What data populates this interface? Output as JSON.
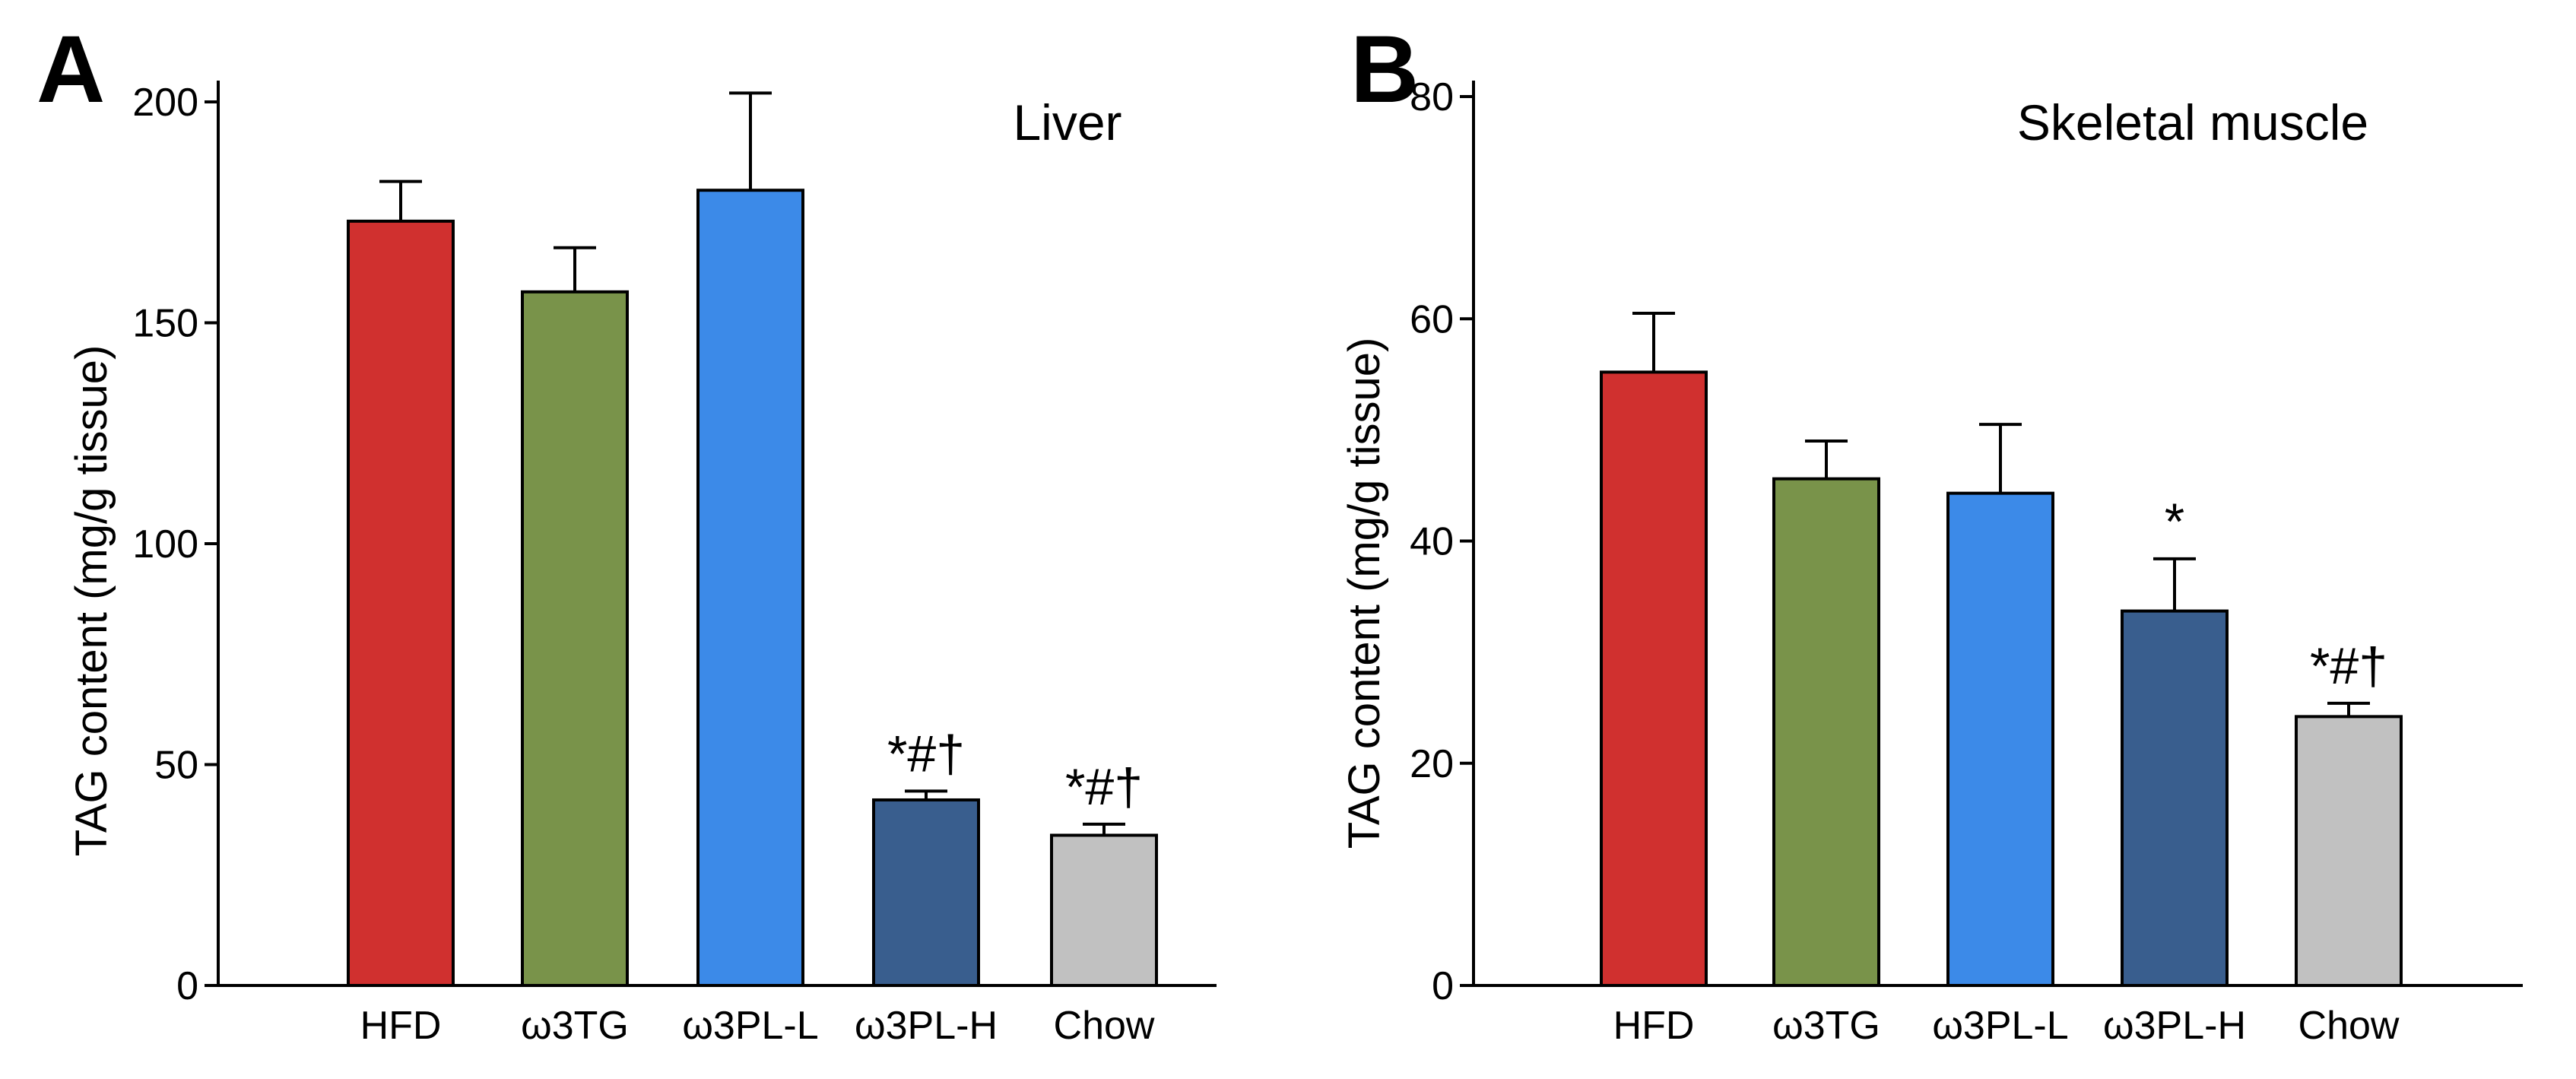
{
  "chart_data": [
    {
      "panel_label": "A",
      "type": "bar",
      "title": "Liver",
      "ylabel": "TAG content (mg/g tissue)",
      "categories": [
        "HFD",
        "ω3TG",
        "ω3PL-L",
        "ω3PL-H",
        "Chow"
      ],
      "values": [
        173,
        157,
        180,
        42,
        34
      ],
      "errors": [
        9,
        10,
        22,
        2,
        2.5
      ],
      "annotations": [
        "",
        "",
        "",
        "*#†",
        "*#†"
      ],
      "colors": [
        "#d0302f",
        "#79934a",
        "#3c8ae8",
        "#395e8e",
        "#c1c1c1"
      ],
      "ylim": [
        0,
        200
      ],
      "yticks": [
        0,
        50,
        100,
        150,
        200
      ],
      "grid": false
    },
    {
      "panel_label": "B",
      "type": "bar",
      "title": "Skeletal muscle",
      "ylabel": "TAG content (mg/g tissue)",
      "categories": [
        "HFD",
        "ω3TG",
        "ω3PL-L",
        "ω3PL-H",
        "Chow"
      ],
      "values": [
        55.2,
        45.6,
        44.3,
        33.7,
        24.2
      ],
      "errors": [
        5.3,
        3.4,
        6.2,
        4.7,
        1.2
      ],
      "annotations": [
        "",
        "",
        "",
        "*",
        "*#†"
      ],
      "colors": [
        "#d0302f",
        "#79934a",
        "#3c8ae8",
        "#395e8e",
        "#c1c1c1"
      ],
      "ylim": [
        0,
        80
      ],
      "yticks": [
        0,
        20,
        40,
        60,
        80
      ],
      "grid": false
    }
  ]
}
